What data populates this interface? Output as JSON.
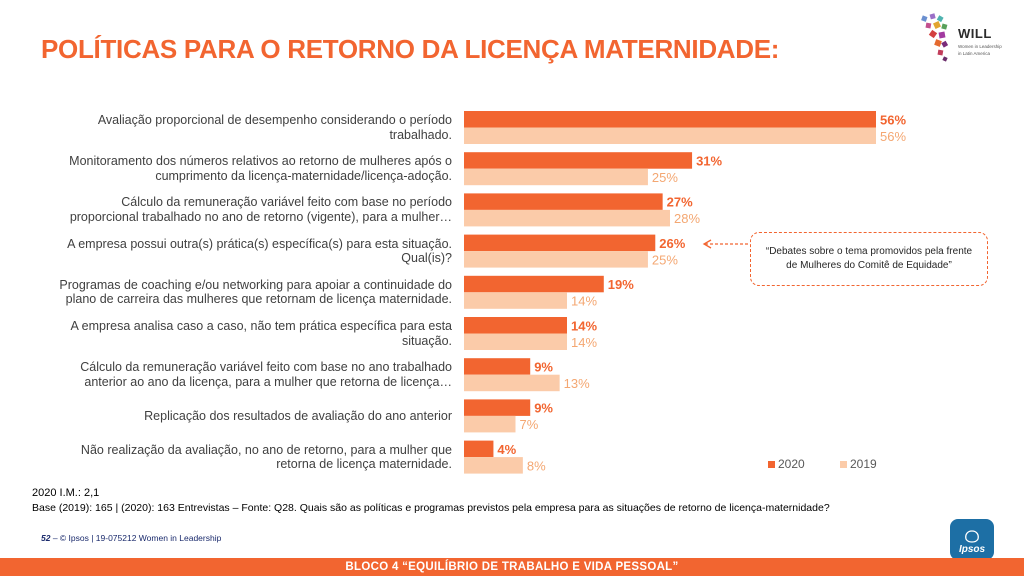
{
  "title": "POLÍTICAS PARA O RETORNO DA LICENÇA MATERNIDADE:",
  "logo": {
    "name": "WILL",
    "sub1": "Women in Leadership",
    "sub2": "in Latin America"
  },
  "chart_data": {
    "type": "bar",
    "orientation": "horizontal",
    "categories": [
      [
        "Avaliação proporcional de desempenho considerando o período",
        "trabalhado."
      ],
      [
        "Monitoramento dos números relativos ao retorno de mulheres após o",
        "cumprimento da licença-maternidade/licença-adoção."
      ],
      [
        "Cálculo da remuneração variável feito com base no período",
        "proporcional trabalhado no ano de retorno (vigente), para a mulher…"
      ],
      [
        "A empresa possui outra(s) prática(s) específica(s) para esta situação.",
        "Qual(is)?"
      ],
      [
        "Programas de coaching e/ou networking para apoiar a continuidade do",
        "plano de carreira das mulheres que retornam de licença maternidade."
      ],
      [
        "A empresa analisa caso a caso, não tem prática específica para esta",
        "situação."
      ],
      [
        "Cálculo da remuneração variável feito com base no ano trabalhado",
        "anterior ao ano da licença, para a mulher que retorna de licença…"
      ],
      [
        "Replicação dos resultados de avaliação do ano anterior"
      ],
      [
        "Não realização da avaliação, no ano de retorno, para a mulher que",
        "retorna de licença maternidade."
      ]
    ],
    "series": [
      {
        "name": "2020",
        "color": "#f26530",
        "label_color": "#f26530",
        "values": [
          56,
          31,
          27,
          26,
          19,
          14,
          9,
          9,
          4
        ]
      },
      {
        "name": "2019",
        "color": "#fbcba9",
        "label_color": "#f4a772",
        "values": [
          56,
          25,
          28,
          25,
          14,
          14,
          13,
          7,
          8
        ]
      }
    ],
    "value_suffix": "%",
    "xlim": [
      0,
      56
    ],
    "legend_position": "bottom-right",
    "annotation": "“Debates sobre o tema promovidos pela frente de Mulheres do Comitê de Equidade”"
  },
  "notes": {
    "im": "2020 I.M.: 2,1",
    "base": "Base (2019): 165 | (2020): 163 Entrevistas – Fonte: Q28. Quais são as políticas e programas previstos pela empresa para as situações de retorno de licença-maternidade?"
  },
  "footer": {
    "page": "52",
    "text": " –  © Ipsos | 19-075212 Women in Leadership",
    "brand": "Ipsos",
    "bar": "BLOCO 4 “EQUILÍBRIO DE TRABALHO E VIDA PESSOAL”"
  }
}
